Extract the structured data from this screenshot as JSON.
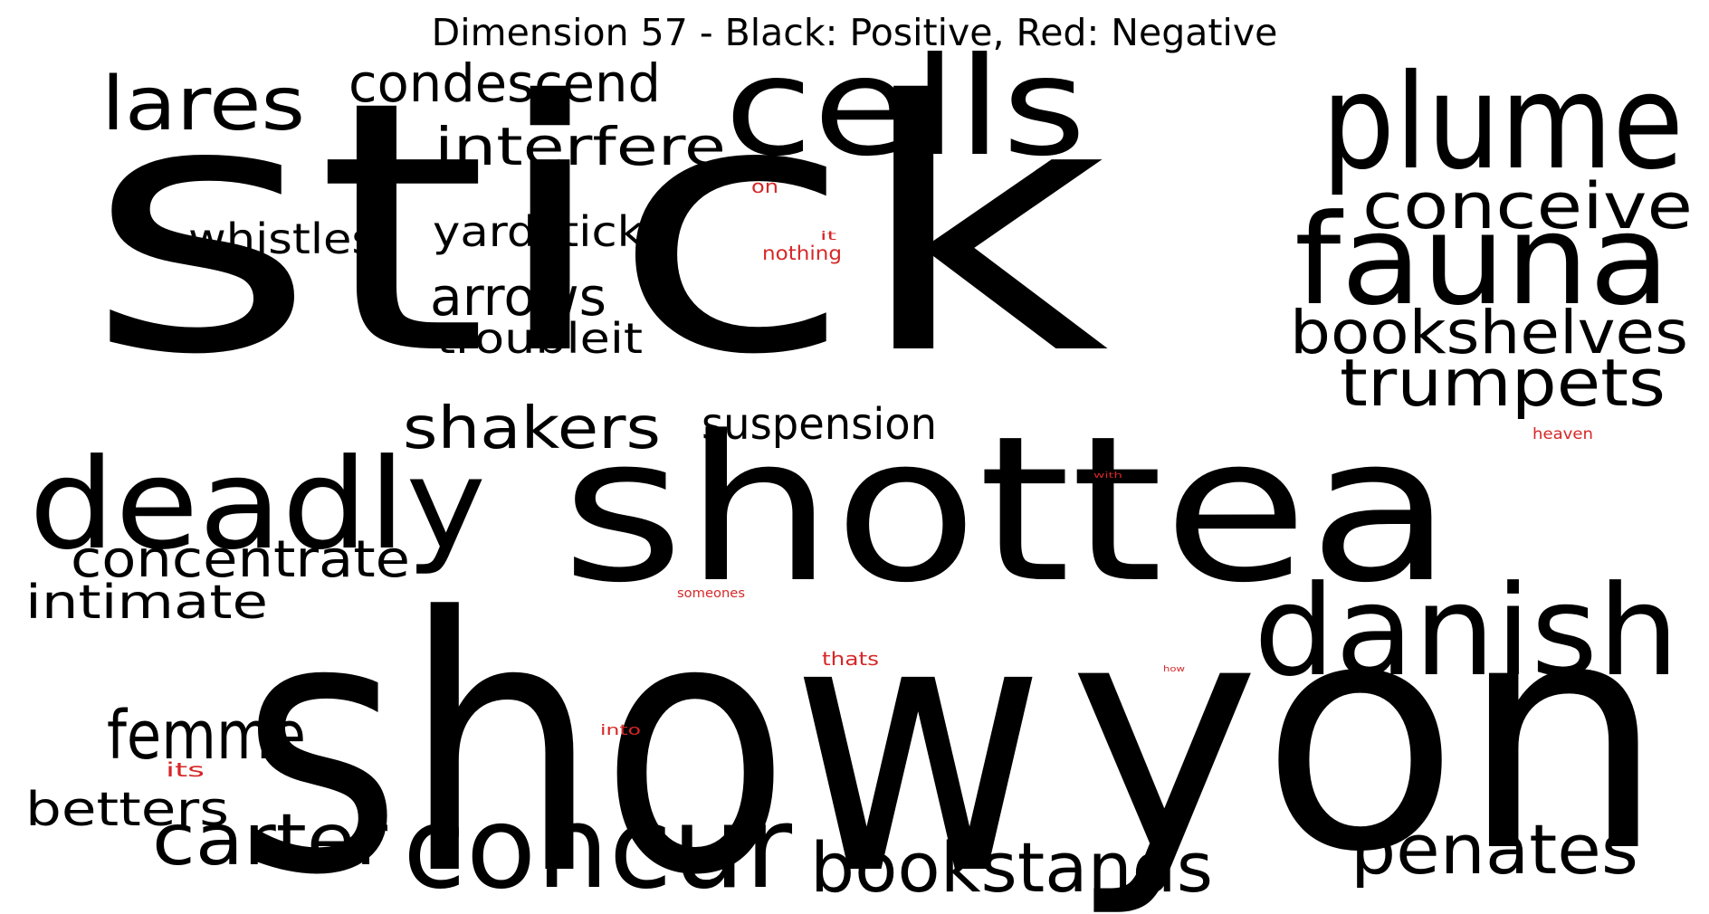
{
  "title": "Dimension 57 - Black: Positive, Red: Negative",
  "colors": {
    "positive": "#000000",
    "negative": "#d62728",
    "background": "#ffffff"
  },
  "legend": {
    "positive": "Black",
    "negative": "Red"
  },
  "words": [
    {
      "text": "stick",
      "polarity": "positive"
    },
    {
      "text": "show",
      "polarity": "positive"
    },
    {
      "text": "shottea",
      "polarity": "positive"
    },
    {
      "text": "yon",
      "polarity": "positive"
    },
    {
      "text": "cells",
      "polarity": "positive"
    },
    {
      "text": "plume",
      "polarity": "positive"
    },
    {
      "text": "fauna",
      "polarity": "positive"
    },
    {
      "text": "deadly",
      "polarity": "positive"
    },
    {
      "text": "danish",
      "polarity": "positive"
    },
    {
      "text": "concur",
      "polarity": "positive"
    },
    {
      "text": "conceive",
      "polarity": "positive"
    },
    {
      "text": "bookshelves",
      "polarity": "positive"
    },
    {
      "text": "trumpets",
      "polarity": "positive"
    },
    {
      "text": "lares",
      "polarity": "positive"
    },
    {
      "text": "condescend",
      "polarity": "positive"
    },
    {
      "text": "interfere",
      "polarity": "positive"
    },
    {
      "text": "whistles",
      "polarity": "positive"
    },
    {
      "text": "yardsticks",
      "polarity": "positive"
    },
    {
      "text": "arrows",
      "polarity": "positive"
    },
    {
      "text": "troubleit",
      "polarity": "positive"
    },
    {
      "text": "shakers",
      "polarity": "positive"
    },
    {
      "text": "suspension",
      "polarity": "positive"
    },
    {
      "text": "concentrate",
      "polarity": "positive"
    },
    {
      "text": "intimate",
      "polarity": "positive"
    },
    {
      "text": "femme",
      "polarity": "positive"
    },
    {
      "text": "betters",
      "polarity": "positive"
    },
    {
      "text": "carter",
      "polarity": "positive"
    },
    {
      "text": "bookstands",
      "polarity": "positive"
    },
    {
      "text": "penates",
      "polarity": "positive"
    },
    {
      "text": "on",
      "polarity": "negative"
    },
    {
      "text": "it",
      "polarity": "negative"
    },
    {
      "text": "nothing",
      "polarity": "negative"
    },
    {
      "text": "heaven",
      "polarity": "negative"
    },
    {
      "text": "with",
      "polarity": "negative"
    },
    {
      "text": "someones",
      "polarity": "negative"
    },
    {
      "text": "thats",
      "polarity": "negative"
    },
    {
      "text": "how",
      "polarity": "negative"
    },
    {
      "text": "into",
      "polarity": "negative"
    },
    {
      "text": "its",
      "polarity": "negative"
    }
  ]
}
